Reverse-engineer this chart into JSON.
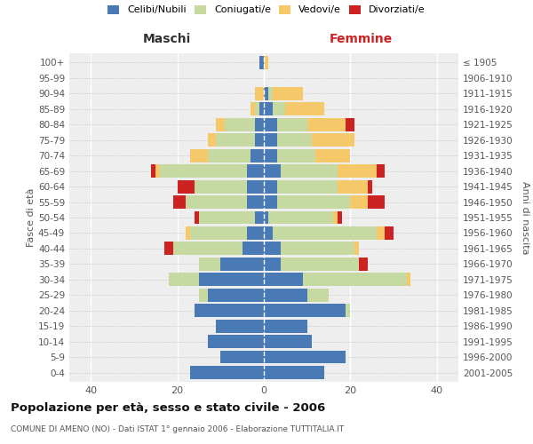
{
  "age_groups": [
    "0-4",
    "5-9",
    "10-14",
    "15-19",
    "20-24",
    "25-29",
    "30-34",
    "35-39",
    "40-44",
    "45-49",
    "50-54",
    "55-59",
    "60-64",
    "65-69",
    "70-74",
    "75-79",
    "80-84",
    "85-89",
    "90-94",
    "95-99",
    "100+"
  ],
  "birth_years": [
    "2001-2005",
    "1996-2000",
    "1991-1995",
    "1986-1990",
    "1981-1985",
    "1976-1980",
    "1971-1975",
    "1966-1970",
    "1961-1965",
    "1956-1960",
    "1951-1955",
    "1946-1950",
    "1941-1945",
    "1936-1940",
    "1931-1935",
    "1926-1930",
    "1921-1925",
    "1916-1920",
    "1911-1915",
    "1906-1910",
    "≤ 1905"
  ],
  "colors": {
    "celibi": "#4a7ab5",
    "coniugati": "#c5d9a0",
    "vedovi": "#f5c96a",
    "divorziati": "#cc2222"
  },
  "maschi": {
    "celibi": [
      17,
      10,
      13,
      11,
      16,
      13,
      15,
      10,
      5,
      4,
      2,
      4,
      4,
      4,
      3,
      2,
      2,
      1,
      0,
      0,
      1
    ],
    "coniugati": [
      0,
      0,
      0,
      0,
      0,
      2,
      7,
      5,
      16,
      13,
      13,
      14,
      12,
      20,
      10,
      9,
      7,
      1,
      0,
      0,
      0
    ],
    "vedovi": [
      0,
      0,
      0,
      0,
      0,
      0,
      0,
      0,
      0,
      1,
      0,
      0,
      0,
      1,
      4,
      2,
      2,
      1,
      2,
      0,
      0
    ],
    "divorziati": [
      0,
      0,
      0,
      0,
      0,
      0,
      0,
      0,
      2,
      0,
      1,
      3,
      4,
      1,
      0,
      0,
      0,
      0,
      0,
      0,
      0
    ]
  },
  "femmine": {
    "celibi": [
      14,
      19,
      11,
      10,
      19,
      10,
      9,
      4,
      4,
      2,
      1,
      3,
      3,
      4,
      3,
      3,
      3,
      2,
      1,
      0,
      0
    ],
    "coniugati": [
      0,
      0,
      0,
      0,
      1,
      5,
      24,
      18,
      17,
      24,
      15,
      17,
      14,
      13,
      9,
      8,
      7,
      3,
      1,
      0,
      0
    ],
    "vedovi": [
      0,
      0,
      0,
      0,
      0,
      0,
      1,
      0,
      1,
      2,
      1,
      4,
      7,
      9,
      8,
      10,
      9,
      9,
      7,
      0,
      1
    ],
    "divorziati": [
      0,
      0,
      0,
      0,
      0,
      0,
      0,
      2,
      0,
      2,
      1,
      4,
      1,
      2,
      0,
      0,
      2,
      0,
      0,
      0,
      0
    ]
  },
  "title": "Popolazione per età, sesso e stato civile - 2006",
  "subtitle": "COMUNE DI AMENO (NO) - Dati ISTAT 1° gennaio 2006 - Elaborazione TUTTITALIA.IT",
  "xlabel_left": "Maschi",
  "xlabel_right": "Femmine",
  "ylabel_left": "Fasce di età",
  "ylabel_right": "Anni di nascita",
  "xlim": 45,
  "legend_labels": [
    "Celibi/Nubili",
    "Coniugati/e",
    "Vedovi/e",
    "Divorziati/e"
  ],
  "background_color": "#ffffff"
}
